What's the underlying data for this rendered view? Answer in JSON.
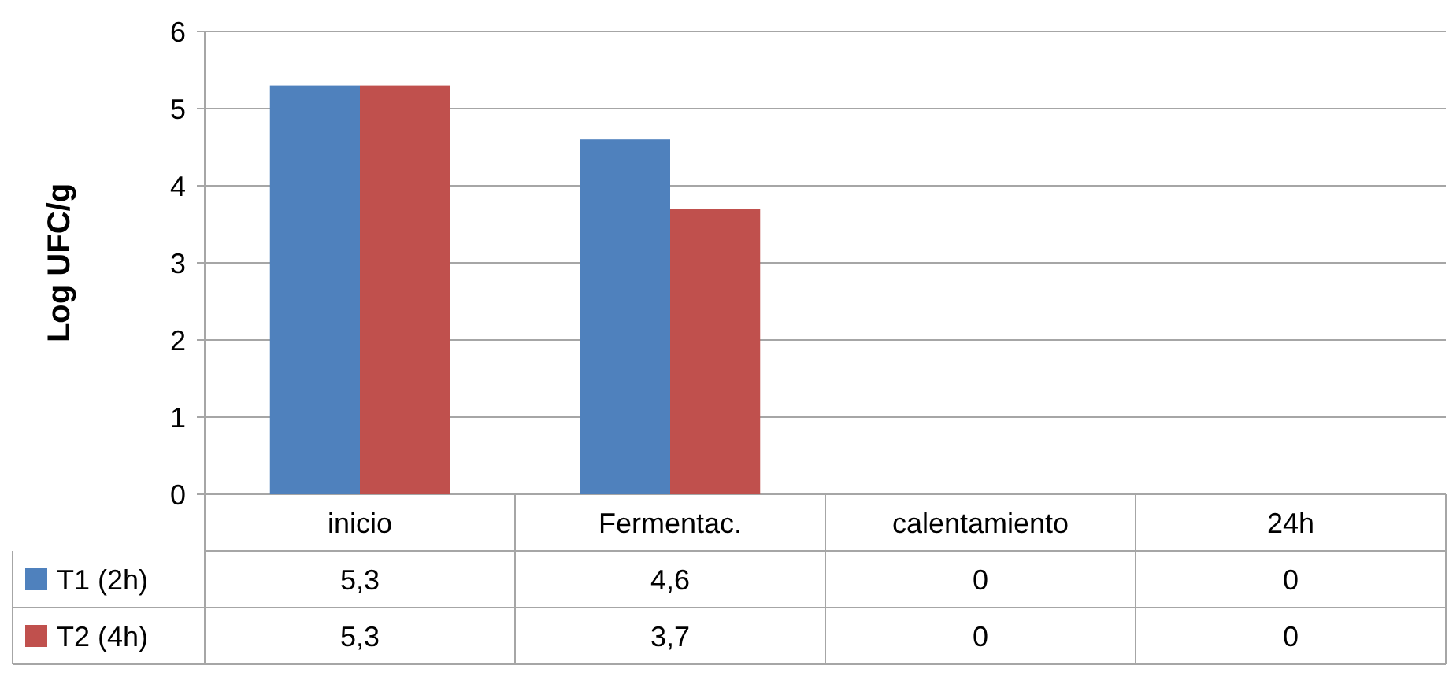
{
  "chart_data": {
    "type": "bar",
    "ylabel": "Log UFC/g",
    "categories": [
      "inicio",
      "Fermentac.",
      "calentamiento",
      "24h"
    ],
    "series": [
      {
        "name": "T1 (2h)",
        "color": "#4f81bd",
        "values": [
          5.3,
          4.6,
          0,
          0
        ],
        "value_labels": [
          "5,3",
          "4,6",
          "0",
          "0"
        ]
      },
      {
        "name": "T2 (4h)",
        "color": "#c0504d",
        "values": [
          5.3,
          3.7,
          0,
          0
        ],
        "value_labels": [
          "5,3",
          "3,7",
          "0",
          "0"
        ]
      }
    ],
    "ylim": [
      0,
      6
    ],
    "yticks": [
      0,
      1,
      2,
      3,
      4,
      5,
      6
    ],
    "grid": "y",
    "legend": "bottom"
  }
}
